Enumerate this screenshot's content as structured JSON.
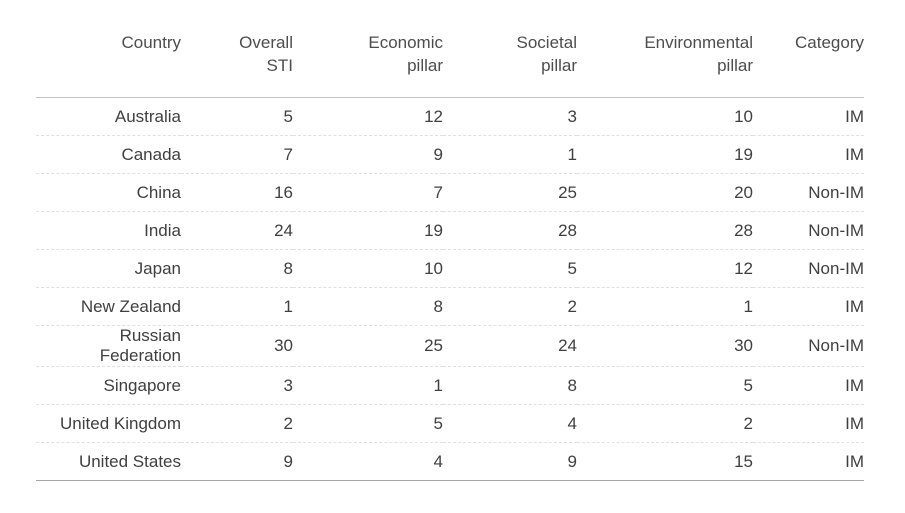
{
  "chart_data": {
    "type": "table",
    "title": "",
    "columns": [
      "Country",
      "Overall STI",
      "Economic pillar",
      "Societal pillar",
      "Environmental pillar",
      "Category"
    ],
    "rows": [
      [
        "Australia",
        5,
        12,
        3,
        10,
        "IM"
      ],
      [
        "Canada",
        7,
        9,
        1,
        19,
        "IM"
      ],
      [
        "China",
        16,
        7,
        25,
        20,
        "Non-IM"
      ],
      [
        "India",
        24,
        19,
        28,
        28,
        "Non-IM"
      ],
      [
        "Japan",
        8,
        10,
        5,
        12,
        "Non-IM"
      ],
      [
        "New Zealand",
        1,
        8,
        2,
        1,
        "IM"
      ],
      [
        "Russian Federation",
        30,
        25,
        24,
        30,
        "Non-IM"
      ],
      [
        "Singapore",
        3,
        1,
        8,
        5,
        "IM"
      ],
      [
        "United Kingdom",
        2,
        5,
        4,
        2,
        "IM"
      ],
      [
        "United States",
        9,
        4,
        9,
        15,
        "IM"
      ]
    ],
    "layout": {
      "grid": "dashed-row-separators",
      "header_rule": "solid",
      "footer_rule": "solid",
      "column_alignment": "right"
    }
  },
  "table": {
    "header_labels": [
      "Country",
      "Overall\nSTI",
      "Economic\npillar",
      "Societal\npillar",
      "Environmental\npillar",
      "Category"
    ]
  },
  "colors": {
    "header_text": "#4d4d4d",
    "body_text": "#3f3f3f",
    "solid_line_top": "#c3c3c3",
    "solid_line_bottom": "#a6a6a6",
    "dashed_line": "#e0e0e0",
    "background": "#ffffff"
  }
}
